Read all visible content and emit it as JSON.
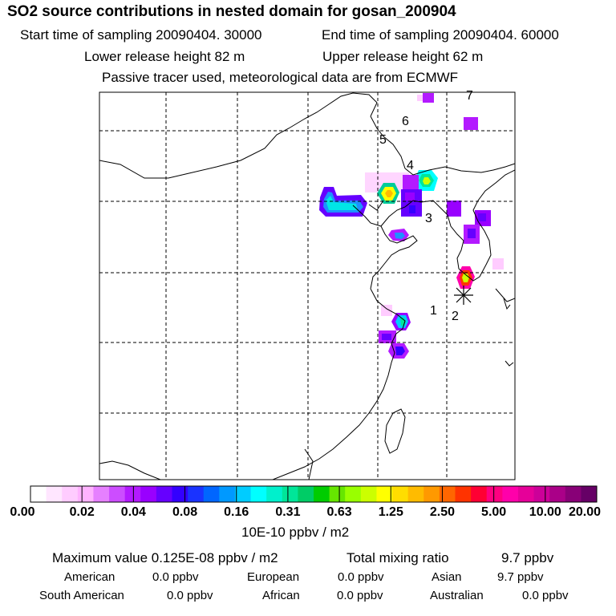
{
  "header": {
    "title": "SO2 source contributions in nested domain for gosan_200904",
    "start_label": "Start time of sampling 20090404. 30000",
    "end_label": "End time of sampling 20090404. 60000",
    "lower_label": "Lower release height   82 m",
    "upper_label": "Upper release height   62 m",
    "tracer_note": "Passive tracer used, meteorological data are from ECMWF"
  },
  "map": {
    "markers": [
      "1",
      "2",
      "3",
      "4",
      "5",
      "6",
      "7"
    ]
  },
  "colorbar": {
    "colors": [
      "#ffffff",
      "#ffe6ff",
      "#ffccff",
      "#ffb3ff",
      "#e680ff",
      "#cc4dff",
      "#b31aff",
      "#9900ff",
      "#6600ff",
      "#3300ff",
      "#1a33ff",
      "#0066ff",
      "#0099ff",
      "#00ccff",
      "#00ffff",
      "#00f0cc",
      "#00e699",
      "#00cc66",
      "#00cc00",
      "#66e600",
      "#99ff00",
      "#ccff00",
      "#ffff00",
      "#ffdd00",
      "#ffbb00",
      "#ff9900",
      "#ff6600",
      "#ff3300",
      "#ff0033",
      "#ff0080",
      "#ff00aa",
      "#e60099",
      "#cc0099",
      "#aa0088",
      "#880077",
      "#660066"
    ],
    "ticks": [
      "0.00",
      "0.02",
      "0.04",
      "0.08",
      "0.16",
      "0.31",
      "0.63",
      "1.25",
      "2.50",
      "5.00",
      "10.00",
      "20.00"
    ],
    "unit": "10E-10 ppbv / m2"
  },
  "summary": {
    "max_label": "Maximum value  0.125E-08 ppbv / m2",
    "total_label": "Total mixing ratio",
    "total_value": "9.7 ppbv",
    "regions": [
      {
        "name": "American",
        "value": "0.0 ppbv"
      },
      {
        "name": "European",
        "value": "0.0 ppbv"
      },
      {
        "name": "Asian",
        "value": "9.7 ppbv"
      },
      {
        "name": "South American",
        "value": "0.0 ppbv"
      },
      {
        "name": "African",
        "value": "0.0 ppbv"
      },
      {
        "name": "Australian",
        "value": "0.0 ppbv"
      }
    ]
  }
}
